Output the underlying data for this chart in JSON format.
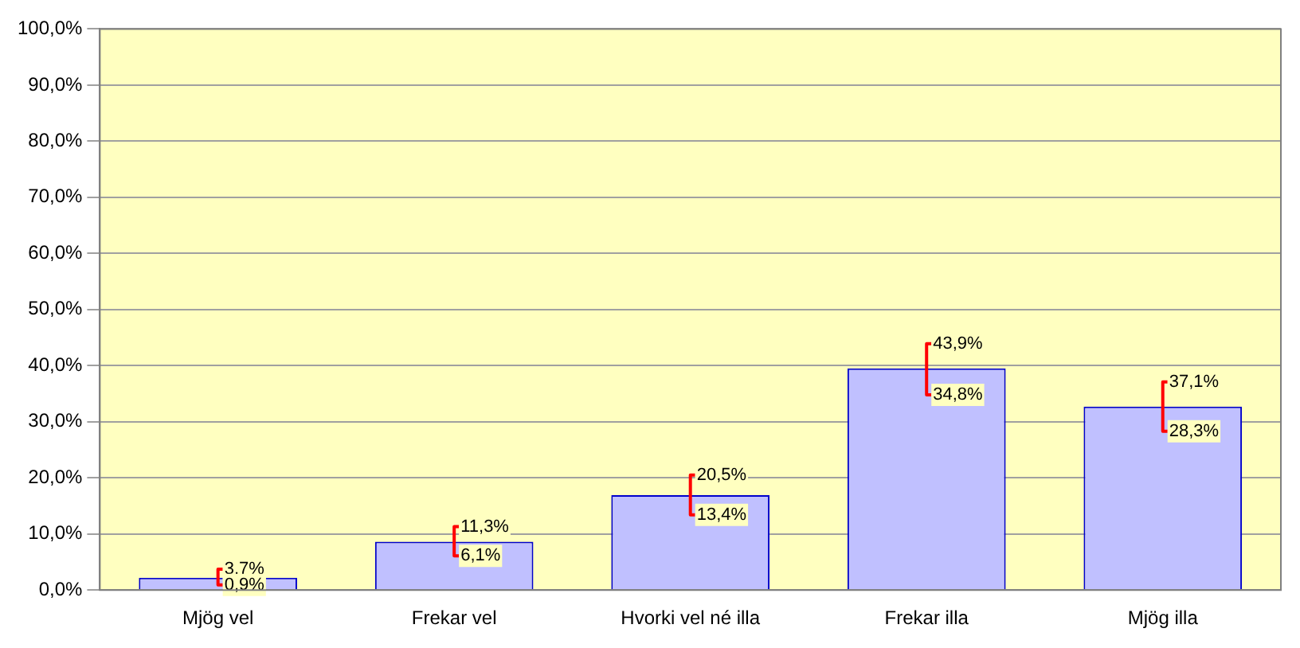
{
  "chart_data": {
    "type": "bar",
    "categories": [
      "Mjög vel",
      "Frekar vel",
      "Hvorki vel né illa",
      "Frekar illa",
      "Mjög illa"
    ],
    "values": [
      2.2,
      8.6,
      16.9,
      39.5,
      32.7
    ],
    "color": "#c0c0ff",
    "errors": [
      [
        0.9,
        3.7
      ],
      [
        6.1,
        11.3
      ],
      [
        13.4,
        20.5
      ],
      [
        34.8,
        43.9
      ],
      [
        28.3,
        37.1
      ]
    ],
    "annotations": [
      {
        "text": "3,7%",
        "x": "Mjög vel",
        "y": 3.7
      },
      {
        "text": "0,9%",
        "x": "Mjög vel",
        "y": 0.9
      },
      {
        "text": "11,3%",
        "x": "Frekar vel",
        "y": 11.3
      },
      {
        "text": "6,1%",
        "x": "Frekar vel",
        "y": 6.1
      },
      {
        "text": "20,5%",
        "x": "Hvorki vel né illa",
        "y": 20.5
      },
      {
        "text": "13,4%",
        "x": "Hvorki vel né illa",
        "y": 13.4
      },
      {
        "text": "43,9%",
        "x": "Frekar illa",
        "y": 43.9
      },
      {
        "text": "34,8%",
        "x": "Frekar illa",
        "y": 34.8
      },
      {
        "text": "37,1%",
        "x": "Mjög illa",
        "y": 37.1
      },
      {
        "text": "28,3%",
        "x": "Mjög illa",
        "y": 28.3
      }
    ],
    "ylim": [
      0,
      100
    ],
    "yticks": [
      {
        "value": 0,
        "label": "0,0%"
      },
      {
        "value": 10,
        "label": "10,0%"
      },
      {
        "value": 20,
        "label": "20,0%"
      },
      {
        "value": 30,
        "label": "30,0%"
      },
      {
        "value": 40,
        "label": "40,0%"
      },
      {
        "value": 50,
        "label": "50,0%"
      },
      {
        "value": 60,
        "label": "60,0%"
      },
      {
        "value": 70,
        "label": "70,0%"
      },
      {
        "value": 80,
        "label": "80,0%"
      },
      {
        "value": 90,
        "label": "90,0%"
      },
      {
        "value": 100,
        "label": "100,0%"
      }
    ],
    "grid": "y",
    "legend": false
  }
}
